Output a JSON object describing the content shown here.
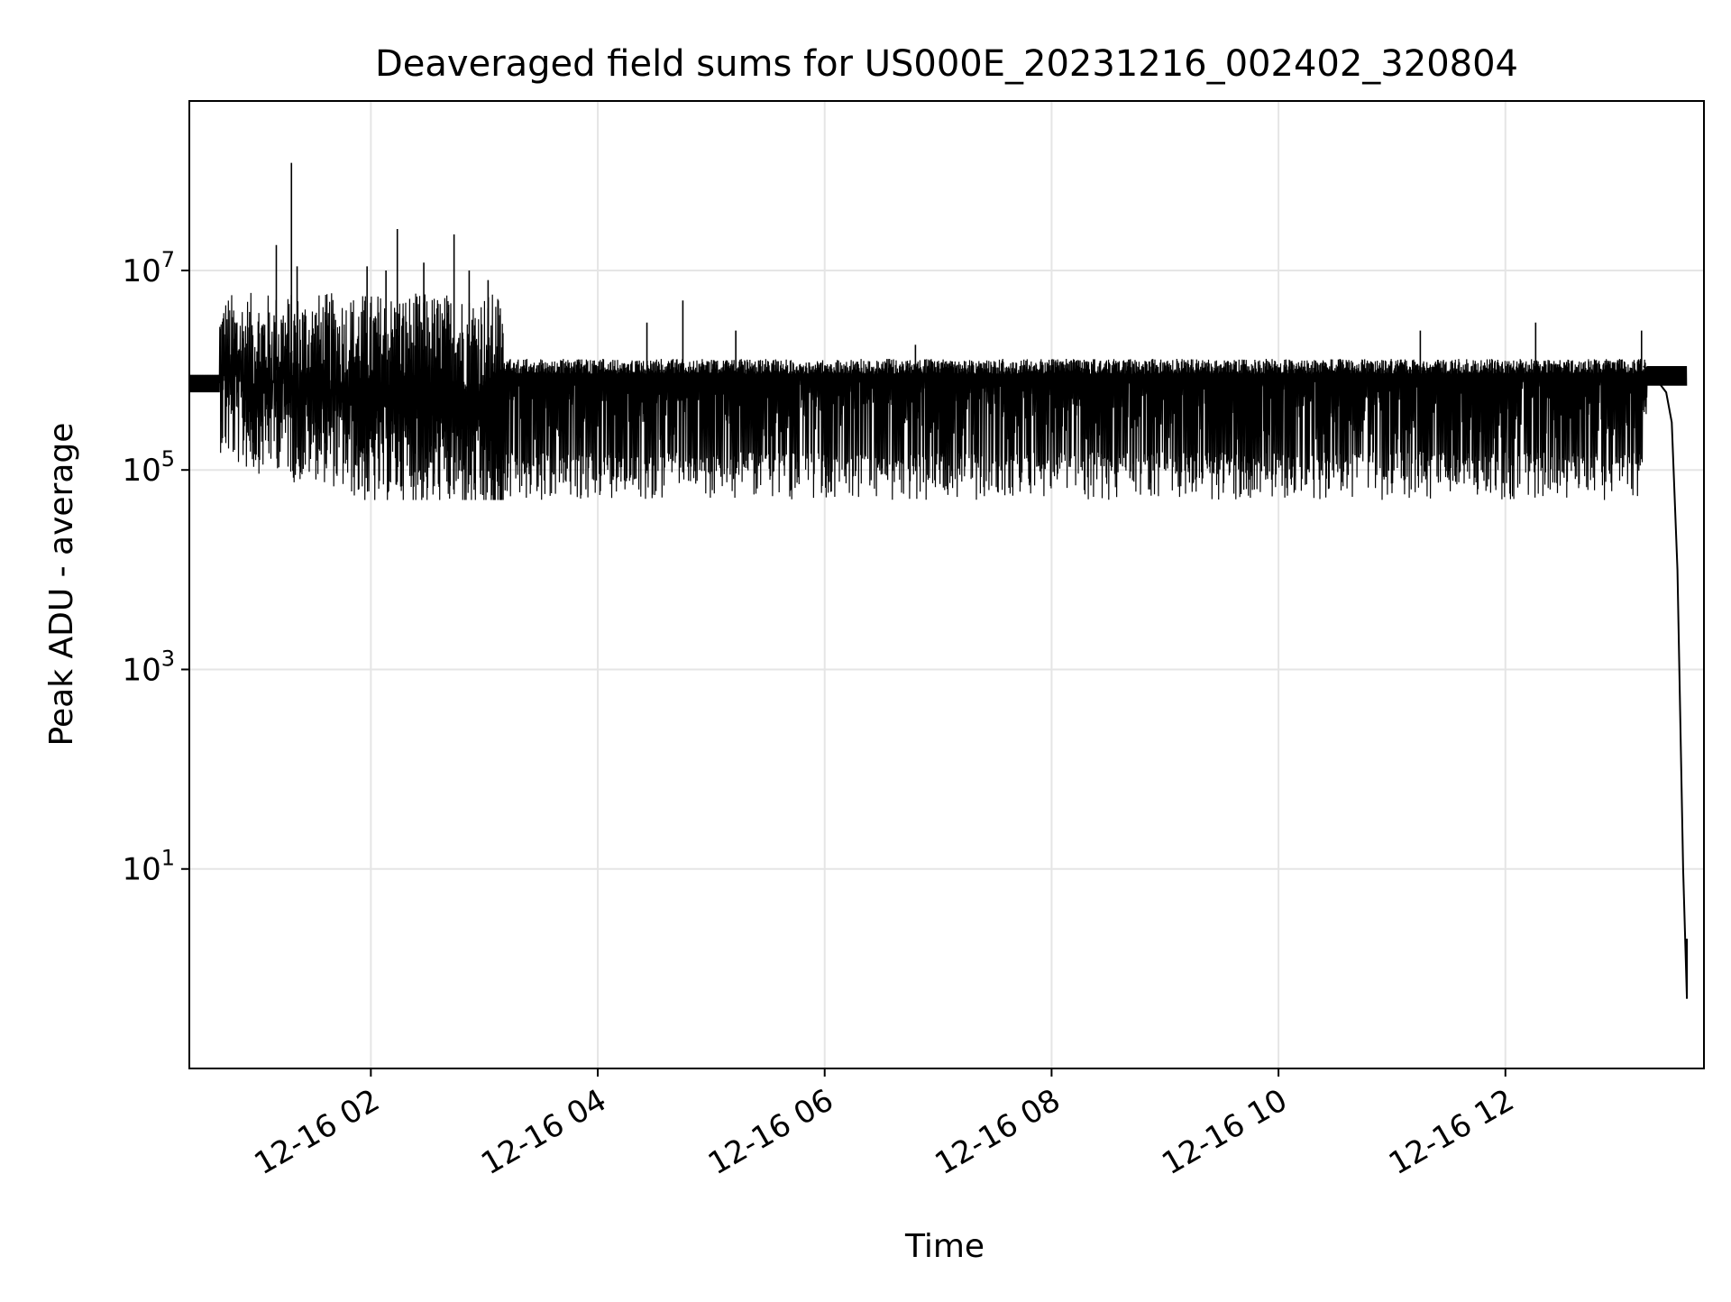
{
  "chart_data": {
    "type": "line",
    "title": "Deaveraged field sums for US000E_20231216_002402_320804",
    "xlabel": "Time",
    "ylabel": "Peak ADU - average",
    "yscale": "log",
    "xlim": [
      "2023-12-16 00:24",
      "2023-12-16 13:45"
    ],
    "ylim": [
      0.1,
      500000000
    ],
    "grid": true,
    "line_color": "#000000",
    "grid_color": "#e5e5e5",
    "x_ticks": [
      {
        "value": "2023-12-16 02:00",
        "label": "12-16 02"
      },
      {
        "value": "2023-12-16 04:00",
        "label": "12-16 04"
      },
      {
        "value": "2023-12-16 06:00",
        "label": "12-16 06"
      },
      {
        "value": "2023-12-16 08:00",
        "label": "12-16 08"
      },
      {
        "value": "2023-12-16 10:00",
        "label": "12-16 10"
      },
      {
        "value": "2023-12-16 12:00",
        "label": "12-16 12"
      }
    ],
    "y_ticks": [
      {
        "value": 10,
        "base": "10",
        "exp": "1"
      },
      {
        "value": 1000,
        "base": "10",
        "exp": "3"
      },
      {
        "value": 100000,
        "base": "10",
        "exp": "5"
      },
      {
        "value": 10000000,
        "base": "10",
        "exp": "7"
      }
    ],
    "series": [
      {
        "x": [
          "2023-12-16 00:24",
          "2023-12-16 00:39",
          "2023-12-16 00:40",
          "2023-12-16 00:45",
          "2023-12-16 00:52",
          "2023-12-16 01:00",
          "2023-12-16 01:07",
          "2023-12-16 01:15",
          "2023-12-16 01:20",
          "2023-12-16 01:30",
          "2023-12-16 01:45",
          "2023-12-16 02:00",
          "2023-12-16 02:15",
          "2023-12-16 02:30",
          "2023-12-16 02:45",
          "2023-12-16 03:00",
          "2023-12-16 03:07",
          "2023-12-16 03:15",
          "2023-12-16 03:30",
          "2023-12-16 04:00",
          "2023-12-16 04:30",
          "2023-12-16 05:00",
          "2023-12-16 06:00",
          "2023-12-16 07:00",
          "2023-12-16 08:00",
          "2023-12-16 09:00",
          "2023-12-16 10:00",
          "2023-12-16 11:00",
          "2023-12-16 12:00",
          "2023-12-16 12:45",
          "2023-12-16 13:05",
          "2023-12-16 13:15",
          "2023-12-16 13:25",
          "2023-12-16 13:30",
          "2023-12-16 13:35",
          "2023-12-16 13:38",
          "2023-12-16 13:39"
        ],
        "y": [
          700000,
          650000,
          1500000,
          1200000,
          1000000,
          900000,
          1000000,
          1000000,
          700000,
          800000,
          600000,
          400000,
          500000,
          400000,
          400000,
          300000,
          150000,
          100000,
          90000,
          90000,
          100000,
          90000,
          100000,
          110000,
          110000,
          120000,
          140000,
          150000,
          160000,
          180000,
          200000,
          1000000,
          700000,
          300000,
          10000,
          10,
          0.5
        ]
      }
    ],
    "spikes": [
      {
        "x": "2023-12-16 01:10",
        "y": 18000000
      },
      {
        "x": "2023-12-16 01:18",
        "y": 120000000
      },
      {
        "x": "2023-12-16 01:21",
        "y": 11000000
      },
      {
        "x": "2023-12-16 01:58",
        "y": 11000000
      },
      {
        "x": "2023-12-16 02:08",
        "y": 10000000
      },
      {
        "x": "2023-12-16 02:14",
        "y": 26000000
      },
      {
        "x": "2023-12-16 02:28",
        "y": 12000000
      },
      {
        "x": "2023-12-16 02:44",
        "y": 23000000
      },
      {
        "x": "2023-12-16 02:52",
        "y": 10000000
      },
      {
        "x": "2023-12-16 03:02",
        "y": 8000000
      },
      {
        "x": "2023-12-16 04:26",
        "y": 3000000
      },
      {
        "x": "2023-12-16 04:45",
        "y": 5000000
      },
      {
        "x": "2023-12-16 05:13",
        "y": 2500000
      },
      {
        "x": "2023-12-16 06:48",
        "y": 1800000
      },
      {
        "x": "2023-12-16 11:15",
        "y": 2500000
      },
      {
        "x": "2023-12-16 12:16",
        "y": 3000000
      },
      {
        "x": "2023-12-16 13:12",
        "y": 2500000
      }
    ]
  }
}
